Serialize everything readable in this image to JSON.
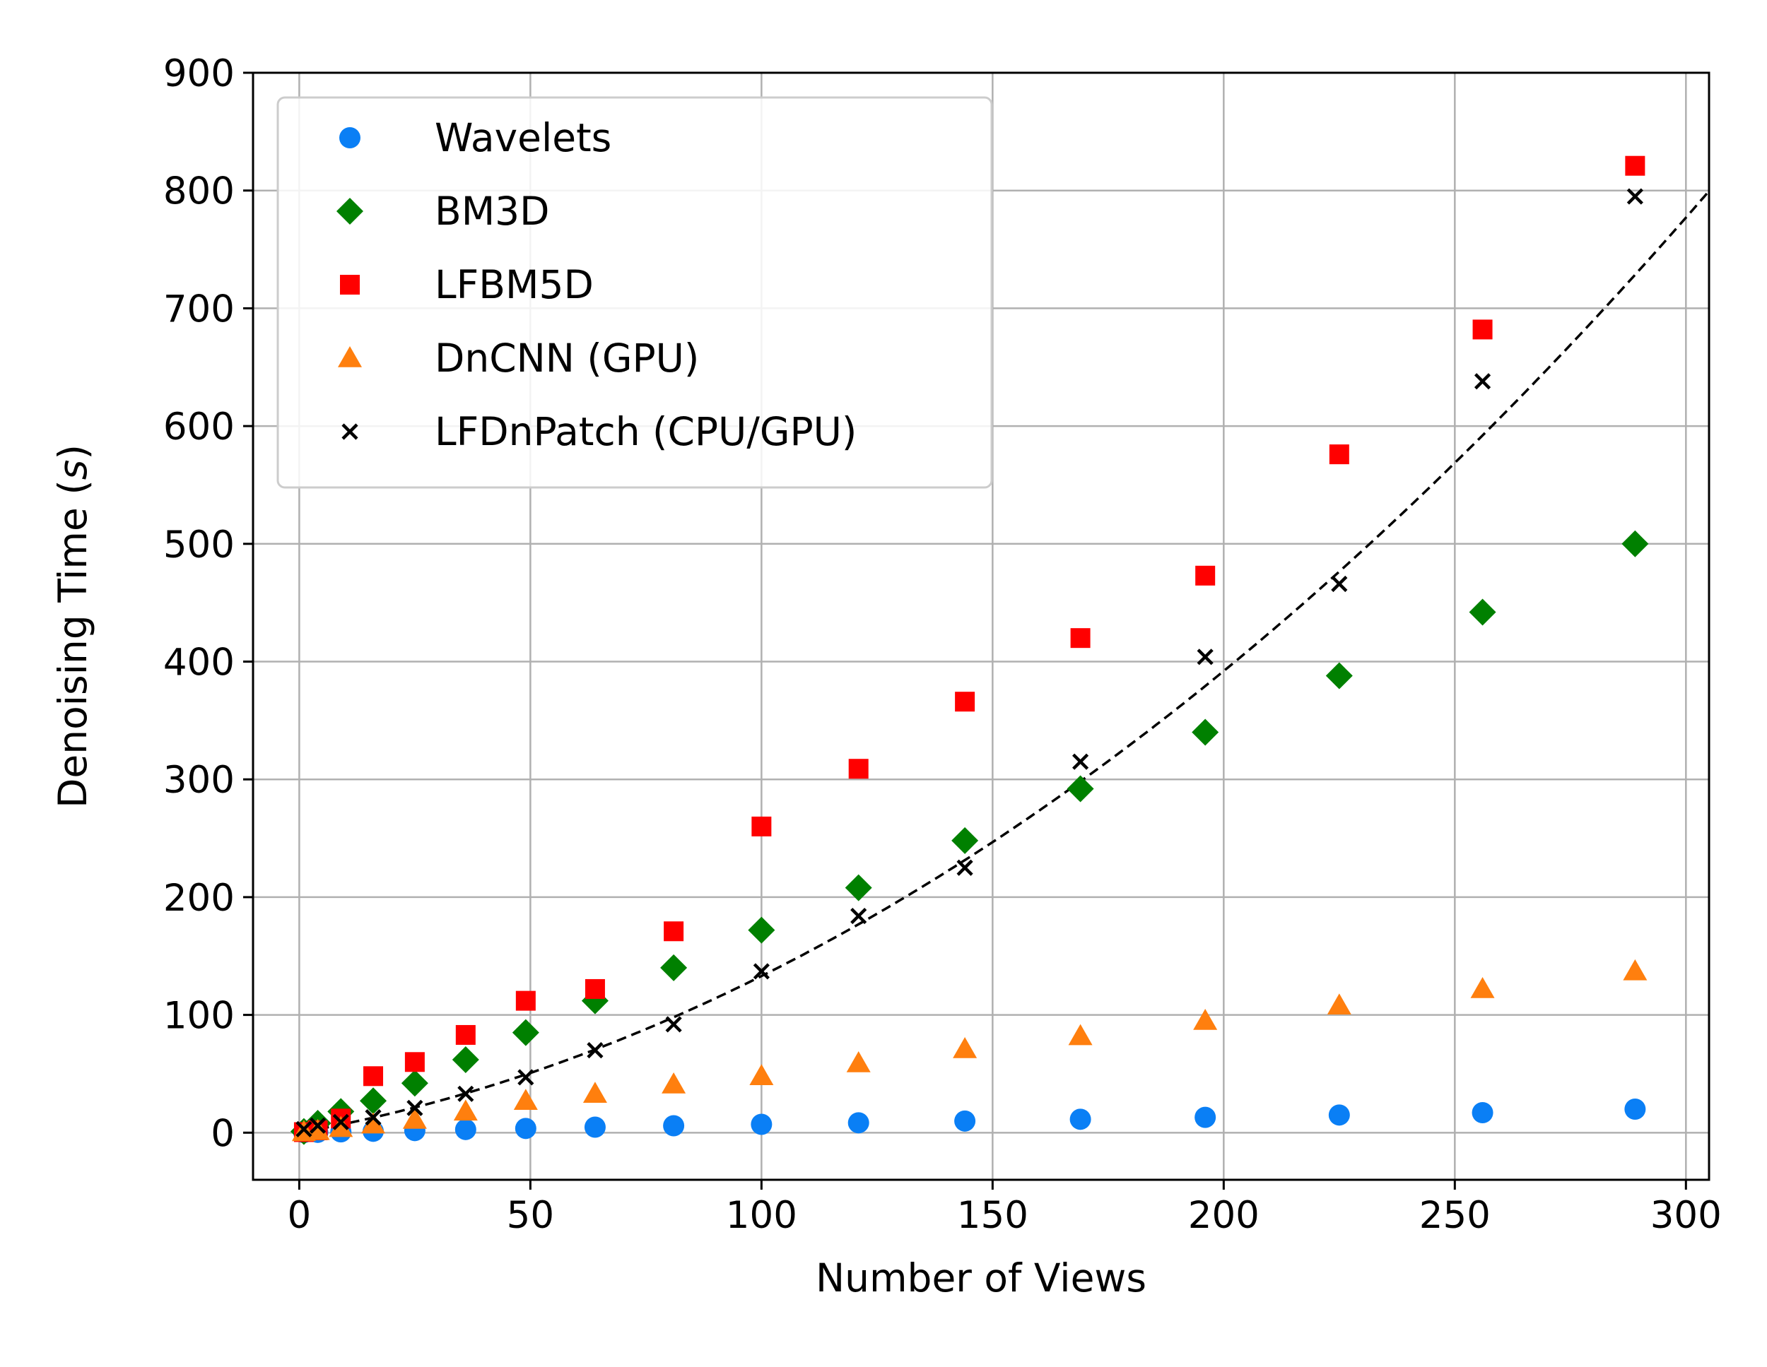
{
  "chart_data": {
    "type": "scatter",
    "title": "",
    "xlabel": "Number of Views",
    "ylabel_main": "Denoising Time (",
    "ylabel_italic": "s",
    "ylabel_close": ")",
    "xlim": [
      -10,
      305
    ],
    "ylim": [
      -40,
      900
    ],
    "xticks": [
      0,
      50,
      100,
      150,
      200,
      250,
      300
    ],
    "yticks": [
      0,
      100,
      200,
      300,
      400,
      500,
      600,
      700,
      800,
      900
    ],
    "grid": true,
    "legend_position": "top-left",
    "x": [
      1,
      4,
      9,
      16,
      25,
      36,
      49,
      64,
      81,
      100,
      121,
      144,
      169,
      196,
      225,
      256,
      289
    ],
    "series": [
      {
        "name": "Wavelets",
        "marker": "circle",
        "color": "#0a7ff5",
        "values": [
          0.1,
          0.3,
          0.7,
          1.2,
          1.8,
          2.7,
          3.6,
          4.7,
          5.9,
          7.1,
          8.4,
          9.9,
          11.4,
          13.0,
          15.0,
          17.0,
          20.0
        ]
      },
      {
        "name": "BM3D",
        "marker": "diamond",
        "color": "#008000",
        "values": [
          1,
          8,
          18,
          27,
          42,
          62,
          85,
          112,
          140,
          172,
          208,
          248,
          292,
          340,
          388,
          442,
          500
        ]
      },
      {
        "name": "LFBM5D",
        "marker": "square",
        "color": "#ff0000",
        "values": [
          0.5,
          2,
          12,
          48,
          60,
          83,
          112,
          122,
          171,
          260,
          309,
          366,
          420,
          473,
          576,
          682,
          821
        ]
      },
      {
        "name": "DnCNN (GPU)",
        "marker": "triangle",
        "color": "#ff7f0e",
        "values": [
          0.5,
          1.5,
          4,
          7,
          11,
          18,
          27,
          33,
          41,
          48,
          59,
          71,
          82,
          95,
          108,
          122,
          137
        ]
      },
      {
        "name": "LFDnPatch (CPU/GPU)",
        "marker": "x",
        "color": "#000000",
        "values": [
          3,
          6,
          9,
          13,
          21,
          33,
          47,
          70,
          92,
          137,
          184,
          225,
          315,
          404,
          466,
          638,
          795
        ]
      }
    ],
    "fit_curve": {
      "style": "dashed",
      "color": "#000000",
      "a": 0.0063,
      "b": 0.7,
      "c": 0
    }
  }
}
